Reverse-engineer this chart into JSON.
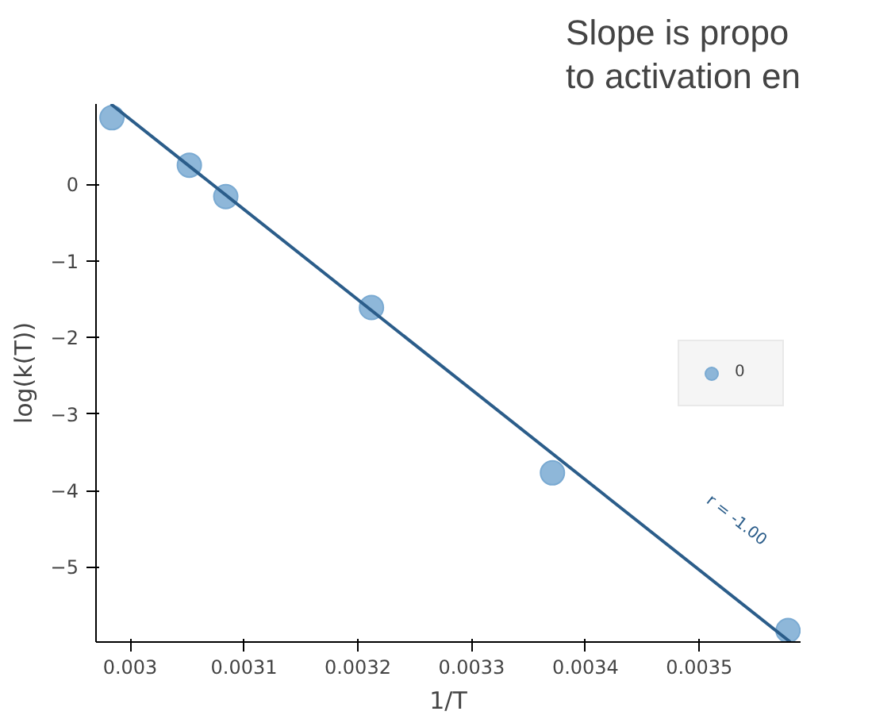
{
  "chart_data": {
    "type": "scatter",
    "title": "Slope is propo\nto activation en",
    "xlabel": "1/T",
    "ylabel": "log(k(T))",
    "xlim": [
      0.00297,
      0.003589
    ],
    "ylim": [
      -5.98,
      1.05
    ],
    "xticks": [
      0.003,
      0.0031,
      0.0032,
      0.0033,
      0.0034,
      0.0035
    ],
    "yticks": [
      -5,
      -4,
      -3,
      -2,
      -1,
      0
    ],
    "grid": false,
    "legend": "right",
    "marker": "circle",
    "series": [
      {
        "name": "0",
        "color": "#7aaad2",
        "x": [
          0.002984,
          0.003052,
          0.003084,
          0.003212,
          0.003371,
          0.003578
        ],
        "values": [
          0.87,
          0.25,
          -0.16,
          -1.61,
          -3.77,
          -5.83
        ]
      },
      {
        "type": "line",
        "color": "#2b5d8a",
        "x": [
          0.002983,
          0.00358
        ],
        "values": [
          1.05,
          -5.98
        ],
        "line_style": "solid",
        "marker": "none"
      }
    ],
    "annotations": [
      "r = -1.00"
    ]
  }
}
